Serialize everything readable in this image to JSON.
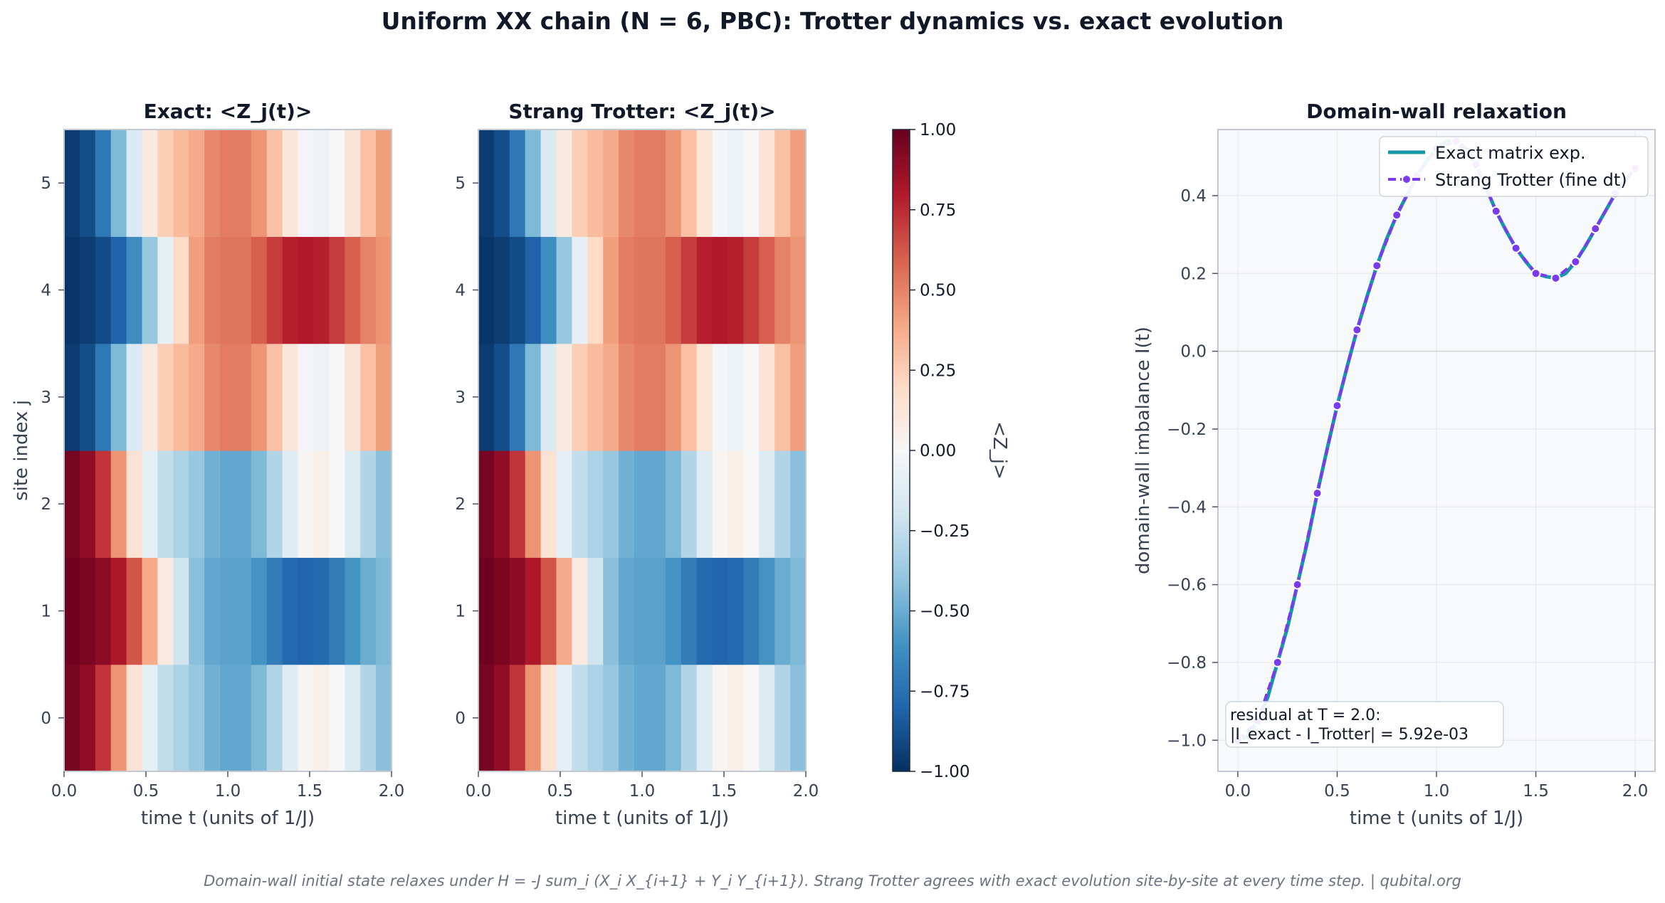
{
  "figure": {
    "suptitle": "Uniform XX chain (N = 6, PBC): Trotter dynamics vs. exact evolution",
    "footer": "Domain-wall initial state relaxes under H = -J sum_i (X_i X_{i+1} + Y_i Y_{i+1}). Strang Trotter agrees with exact evolution site-by-site at every time step.  |  qubital.org"
  },
  "chart_data": [
    {
      "type": "heatmap",
      "title": "Exact: <Z_j(t)>",
      "xlabel": "time t (units of 1/J)",
      "ylabel": "site index j",
      "x_ticks": [
        "0.0",
        "0.5",
        "1.0",
        "1.5",
        "2.0"
      ],
      "y_ticks": [
        "0",
        "1",
        "2",
        "3",
        "4",
        "5"
      ],
      "xlim": [
        0,
        2
      ],
      "ylim": [
        -0.5,
        5.5
      ],
      "colormap": "RdBu_r",
      "vmin": -1,
      "vmax": 1,
      "times": [
        0.0,
        0.1,
        0.2,
        0.3,
        0.4,
        0.5,
        0.6,
        0.7,
        0.8,
        0.9,
        1.0,
        1.1,
        1.2,
        1.3,
        1.4,
        1.5,
        1.6,
        1.7,
        1.8,
        1.9,
        2.0
      ],
      "sites": [
        0,
        1,
        2,
        3,
        4,
        5
      ],
      "values": [
        [
          0.96,
          0.89,
          0.72,
          0.45,
          0.15,
          -0.1,
          -0.25,
          -0.32,
          -0.38,
          -0.48,
          -0.52,
          -0.52,
          -0.45,
          -0.3,
          -0.12,
          0.02,
          0.06,
          0.0,
          -0.14,
          -0.3,
          -0.42
        ],
        [
          0.98,
          0.95,
          0.9,
          0.81,
          0.63,
          0.38,
          0.09,
          -0.2,
          -0.42,
          -0.52,
          -0.54,
          -0.54,
          -0.6,
          -0.7,
          -0.78,
          -0.8,
          -0.78,
          -0.7,
          -0.6,
          -0.5,
          -0.45
        ],
        [
          0.96,
          0.89,
          0.72,
          0.45,
          0.15,
          -0.1,
          -0.25,
          -0.32,
          -0.38,
          -0.48,
          -0.52,
          -0.52,
          -0.45,
          -0.3,
          -0.12,
          0.02,
          0.06,
          0.0,
          -0.14,
          -0.3,
          -0.42
        ],
        [
          -0.96,
          -0.89,
          -0.72,
          -0.45,
          -0.15,
          0.1,
          0.25,
          0.32,
          0.38,
          0.48,
          0.52,
          0.52,
          0.45,
          0.3,
          0.12,
          -0.02,
          -0.06,
          0.0,
          0.14,
          0.3,
          0.42
        ],
        [
          -0.98,
          -0.95,
          -0.9,
          -0.81,
          -0.63,
          -0.38,
          -0.09,
          0.2,
          0.42,
          0.52,
          0.54,
          0.54,
          0.6,
          0.7,
          0.78,
          0.8,
          0.78,
          0.7,
          0.6,
          0.5,
          0.45
        ],
        [
          -0.96,
          -0.89,
          -0.72,
          -0.45,
          -0.15,
          0.1,
          0.25,
          0.32,
          0.38,
          0.48,
          0.52,
          0.52,
          0.45,
          0.3,
          0.12,
          -0.02,
          -0.06,
          0.0,
          0.14,
          0.3,
          0.42
        ]
      ]
    },
    {
      "type": "heatmap",
      "title": "Strang Trotter: <Z_j(t)>",
      "xlabel": "time t (units of 1/J)",
      "ylabel": "",
      "x_ticks": [
        "0.0",
        "0.5",
        "1.0",
        "1.5",
        "2.0"
      ],
      "y_ticks": [
        "0",
        "1",
        "2",
        "3",
        "4",
        "5"
      ],
      "xlim": [
        0,
        2
      ],
      "ylim": [
        -0.5,
        5.5
      ],
      "colormap": "RdBu_r",
      "vmin": -1,
      "vmax": 1,
      "times": [
        0.0,
        0.1,
        0.2,
        0.3,
        0.4,
        0.5,
        0.6,
        0.7,
        0.8,
        0.9,
        1.0,
        1.1,
        1.2,
        1.3,
        1.4,
        1.5,
        1.6,
        1.7,
        1.8,
        1.9,
        2.0
      ],
      "sites": [
        0,
        1,
        2,
        3,
        4,
        5
      ],
      "values": [
        [
          0.96,
          0.89,
          0.72,
          0.45,
          0.15,
          -0.1,
          -0.25,
          -0.32,
          -0.38,
          -0.48,
          -0.52,
          -0.52,
          -0.45,
          -0.3,
          -0.12,
          0.02,
          0.06,
          0.0,
          -0.14,
          -0.3,
          -0.42
        ],
        [
          0.98,
          0.95,
          0.9,
          0.81,
          0.63,
          0.38,
          0.09,
          -0.2,
          -0.42,
          -0.52,
          -0.54,
          -0.54,
          -0.6,
          -0.7,
          -0.78,
          -0.8,
          -0.78,
          -0.7,
          -0.6,
          -0.5,
          -0.45
        ],
        [
          0.96,
          0.89,
          0.72,
          0.45,
          0.15,
          -0.1,
          -0.25,
          -0.32,
          -0.38,
          -0.48,
          -0.52,
          -0.52,
          -0.45,
          -0.3,
          -0.12,
          0.02,
          0.06,
          0.0,
          -0.14,
          -0.3,
          -0.42
        ],
        [
          -0.96,
          -0.89,
          -0.72,
          -0.45,
          -0.15,
          0.1,
          0.25,
          0.32,
          0.38,
          0.48,
          0.52,
          0.52,
          0.45,
          0.3,
          0.12,
          -0.02,
          -0.06,
          0.0,
          0.14,
          0.3,
          0.42
        ],
        [
          -0.98,
          -0.95,
          -0.9,
          -0.81,
          -0.63,
          -0.38,
          -0.09,
          0.2,
          0.42,
          0.52,
          0.54,
          0.54,
          0.6,
          0.7,
          0.78,
          0.8,
          0.78,
          0.7,
          0.6,
          0.5,
          0.45
        ],
        [
          -0.96,
          -0.89,
          -0.72,
          -0.45,
          -0.15,
          0.1,
          0.25,
          0.32,
          0.38,
          0.48,
          0.52,
          0.52,
          0.45,
          0.3,
          0.12,
          -0.02,
          -0.06,
          0.0,
          0.14,
          0.3,
          0.42
        ]
      ],
      "colorbar": {
        "label": "<Z_j>",
        "ticks": [
          -1.0,
          -0.75,
          -0.5,
          -0.25,
          0.0,
          0.25,
          0.5,
          0.75,
          1.0
        ],
        "tick_labels": [
          "−1.00",
          "−0.75",
          "−0.50",
          "−0.25",
          "0.00",
          "0.25",
          "0.50",
          "0.75",
          "1.00"
        ]
      }
    },
    {
      "type": "line",
      "title": "Domain-wall relaxation",
      "xlabel": "time t (units of 1/J)",
      "ylabel": "domain-wall imbalance I(t)",
      "xlim": [
        -0.1,
        2.1
      ],
      "ylim": [
        -1.08,
        0.57
      ],
      "x_ticks": [
        0.0,
        0.5,
        1.0,
        1.5,
        2.0
      ],
      "x_tick_labels": [
        "0.0",
        "0.5",
        "1.0",
        "1.5",
        "2.0"
      ],
      "y_ticks": [
        -1.0,
        -0.8,
        -0.6,
        -0.4,
        -0.2,
        0.0,
        0.2,
        0.4
      ],
      "y_tick_labels": [
        "−1.0",
        "−0.8",
        "−0.6",
        "−0.4",
        "−0.2",
        "0.0",
        "0.2",
        "0.4"
      ],
      "grid": true,
      "legend_position": "top-right",
      "series": [
        {
          "name": "Exact matrix exp.",
          "color": "#1497a8",
          "style": "solid",
          "x": [
            0.0,
            0.05,
            0.1,
            0.15,
            0.2,
            0.25,
            0.3,
            0.35,
            0.4,
            0.45,
            0.5,
            0.55,
            0.6,
            0.65,
            0.7,
            0.75,
            0.8,
            0.85,
            0.9,
            0.95,
            1.0,
            1.05,
            1.1,
            1.15,
            1.2,
            1.25,
            1.3,
            1.35,
            1.4,
            1.45,
            1.5,
            1.55,
            1.6,
            1.65,
            1.7,
            1.75,
            1.8,
            1.85,
            1.9,
            1.95,
            2.0
          ],
          "y": [
            -1.0,
            -0.99,
            -0.95,
            -0.89,
            -0.8,
            -0.71,
            -0.6,
            -0.49,
            -0.365,
            -0.25,
            -0.14,
            -0.04,
            0.055,
            0.14,
            0.22,
            0.29,
            0.35,
            0.4,
            0.45,
            0.49,
            0.52,
            0.54,
            0.54,
            0.52,
            0.48,
            0.42,
            0.36,
            0.31,
            0.265,
            0.23,
            0.2,
            0.192,
            0.188,
            0.2,
            0.23,
            0.27,
            0.315,
            0.36,
            0.405,
            0.44,
            0.47
          ]
        },
        {
          "name": "Strang Trotter (fine dt)",
          "color": "#7c3aed",
          "style": "dashed",
          "markers": true,
          "x": [
            0.0,
            0.1,
            0.2,
            0.3,
            0.4,
            0.5,
            0.6,
            0.7,
            0.8,
            0.9,
            1.0,
            1.1,
            1.2,
            1.3,
            1.4,
            1.5,
            1.6,
            1.7,
            1.8,
            1.9,
            2.0
          ],
          "y": [
            -1.0,
            -0.95,
            -0.8,
            -0.6,
            -0.365,
            -0.14,
            0.055,
            0.22,
            0.35,
            0.45,
            0.52,
            0.54,
            0.48,
            0.36,
            0.265,
            0.2,
            0.188,
            0.23,
            0.315,
            0.405,
            0.47
          ]
        }
      ],
      "annotation": {
        "line1": "residual at T = 2.0:",
        "line2": "|I_exact - I_Trotter| = 5.92e-03"
      }
    }
  ]
}
